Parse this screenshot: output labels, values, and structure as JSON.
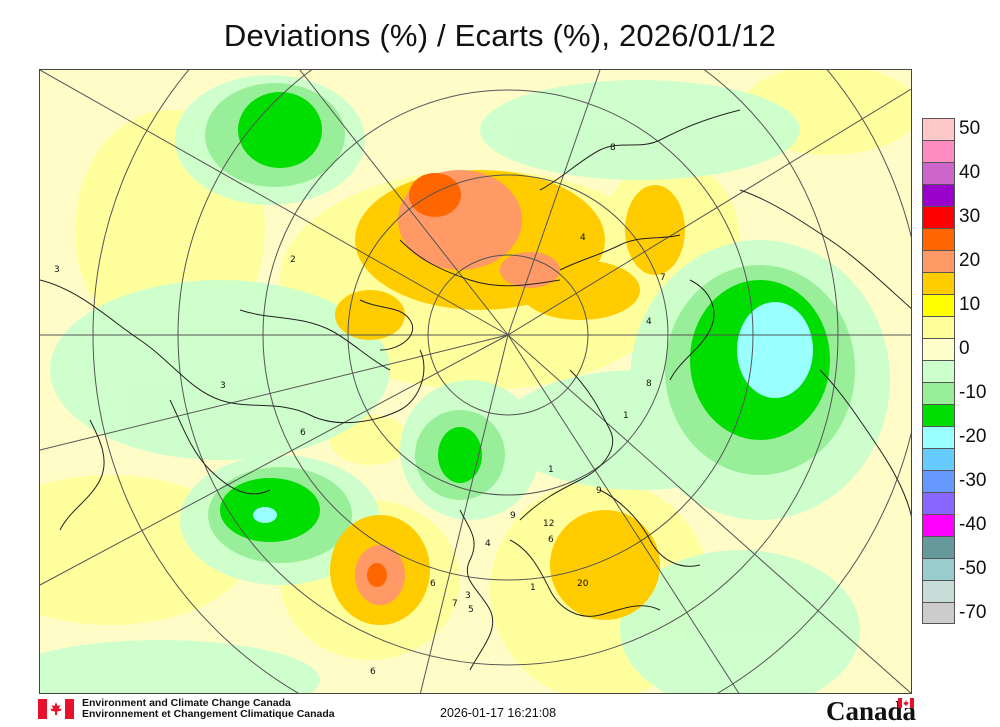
{
  "title": "Deviations (%) / Ecarts (%), 2026/01/12",
  "legend": {
    "entries": [
      {
        "label": "50",
        "color": "#ffc8c8"
      },
      {
        "label": "",
        "color": "#ff8cc0"
      },
      {
        "label": "40",
        "color": "#cc66cc"
      },
      {
        "label": "",
        "color": "#9900cc"
      },
      {
        "label": "30",
        "color": "#ff0000"
      },
      {
        "label": "",
        "color": "#ff6600"
      },
      {
        "label": "20",
        "color": "#ff9966"
      },
      {
        "label": "",
        "color": "#ffcc00"
      },
      {
        "label": "10",
        "color": "#ffff00"
      },
      {
        "label": "",
        "color": "#ffff99"
      },
      {
        "label": "0",
        "color": "#ffffcc"
      },
      {
        "label": "",
        "color": "#ccffcc"
      },
      {
        "label": "-10",
        "color": "#99ee99"
      },
      {
        "label": "",
        "color": "#00dd00"
      },
      {
        "label": "-20",
        "color": "#99ffff"
      },
      {
        "label": "",
        "color": "#66ccff"
      },
      {
        "label": "-30",
        "color": "#6699ff"
      },
      {
        "label": "",
        "color": "#8866ff"
      },
      {
        "label": "-40",
        "color": "#ff00ff"
      },
      {
        "label": "",
        "color": "#669999"
      },
      {
        "label": "-50",
        "color": "#99cccc"
      },
      {
        "label": "",
        "color": "#c8ddd8"
      },
      {
        "label": "-70",
        "color": "#cccccc"
      }
    ]
  },
  "agency": {
    "line1": "Environment and Climate Change Canada",
    "line2": "Environnement et Changement Climatique Canada"
  },
  "timestamp": "2026-01-17 16:21:08",
  "wordmark": "Canada",
  "station_labels": [
    "3",
    "2",
    "8",
    "4",
    "6",
    "7",
    "4",
    "8",
    "1",
    "9",
    "12",
    "9",
    "6",
    "20",
    "1",
    "3",
    "5",
    "7",
    "4",
    "6",
    "1",
    "3",
    "6"
  ],
  "colors": {
    "map_base": "#fffcc8",
    "grid": "#555555",
    "coast": "#222222",
    "flag_red": "#e8112d"
  }
}
